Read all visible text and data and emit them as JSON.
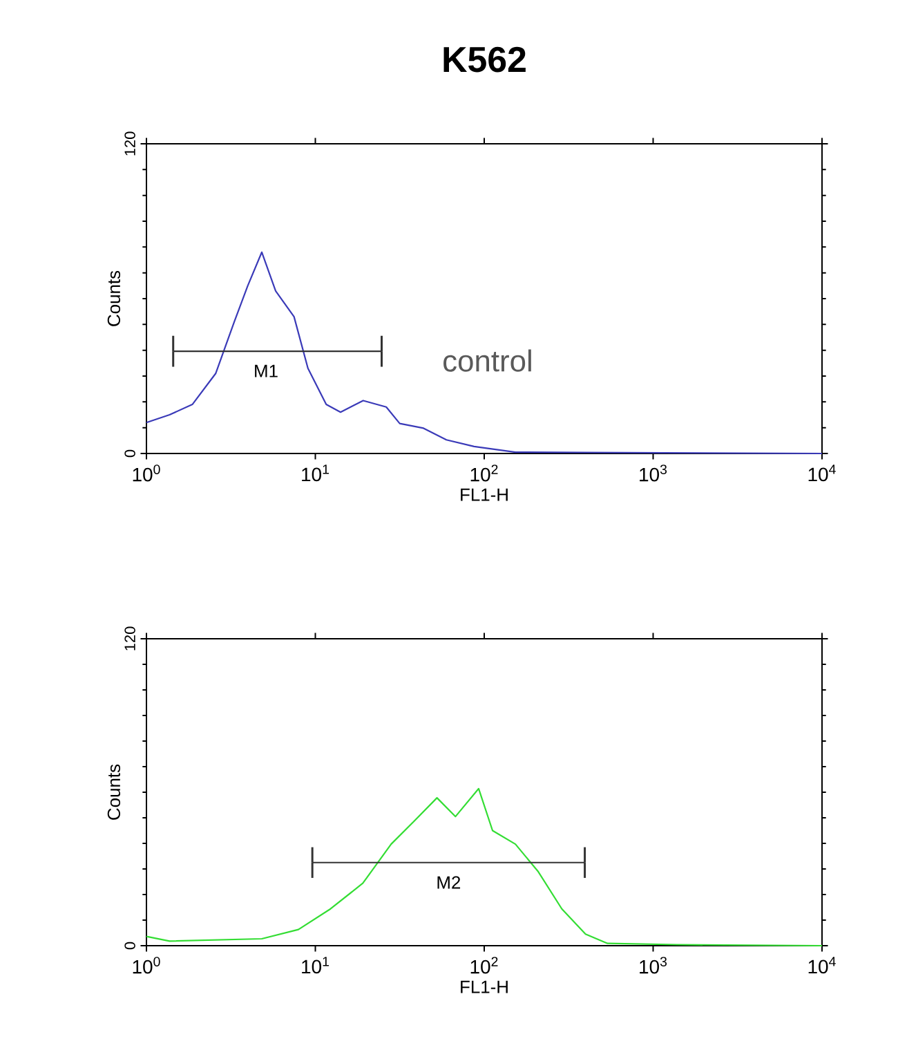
{
  "chart_data": [
    {
      "type": "line",
      "title": "K562",
      "xlabel": "FL1-H",
      "ylabel": "Counts",
      "log": "x",
      "xlim": [
        1,
        10000
      ],
      "ylim": [
        0,
        120
      ],
      "xticks": [
        {
          "value": 1,
          "label": "10$^{0}$"
        },
        {
          "value": 10,
          "label": "10$^{1}$"
        },
        {
          "value": 100,
          "label": "10$^{2}$"
        },
        {
          "value": 1000,
          "label": "10$^{3}$"
        },
        {
          "value": 10000,
          "label": "10$^{4}$"
        }
      ],
      "yticks": [
        0,
        120
      ],
      "series": [
        {
          "color": "#3a3ab8",
          "x": [
            1,
            1.37,
            1.87,
            2.57,
            3.31,
            3.98,
            4.82,
            5.82,
            7.48,
            9.04,
            11.6,
            14.1,
            19.2,
            26.3,
            31.6,
            43.7,
            59.7,
            87.1,
            153,
            398,
            10000
          ],
          "values": [
            12,
            15,
            19,
            31,
            51,
            65,
            78,
            63,
            53,
            33,
            19,
            16,
            20.5,
            18,
            11.6,
            9.8,
            5.3,
            2.7,
            0.5,
            0.4,
            0
          ]
        },
        {
          "type": "line",
          "color": "#333333",
          "x": [
            1.44,
            24.7
          ],
          "values": [
            39.6,
            39.6
          ],
          "errors": [
            6,
            6
          ]
        }
      ],
      "annotations": [
        {
          "text": "M1",
          "x": 5.1,
          "y": 39.6
        },
        "control"
      ]
    },
    {
      "type": "line",
      "xlabel": "FL1-H",
      "ylabel": "Counts",
      "log": "x",
      "xlim": [
        1,
        10000
      ],
      "ylim": [
        0,
        120
      ],
      "xticks": [
        {
          "value": 1,
          "label": "10$^{0}$"
        },
        {
          "value": 10,
          "label": "10$^{1}$"
        },
        {
          "value": 100,
          "label": "10$^{2}$"
        },
        {
          "value": 1000,
          "label": "10$^{3}$"
        },
        {
          "value": 10000,
          "label": "10$^{4}$"
        }
      ],
      "yticks": [
        0,
        120
      ],
      "series": [
        {
          "color": "#33dd33",
          "x": [
            1,
            1.37,
            4.82,
            7.94,
            12.3,
            19.1,
            28.1,
            38.5,
            52.5,
            67.6,
            92.7,
            112,
            153,
            209,
            288,
            398,
            537,
            1380,
            10000
          ],
          "values": [
            3.6,
            1.8,
            2.7,
            6.3,
            14.4,
            24.4,
            39.7,
            48.7,
            57.8,
            50.5,
            61.4,
            45,
            39.7,
            28.9,
            14.4,
            4.5,
            0.9,
            0.4,
            0
          ]
        },
        {
          "type": "line",
          "color": "#333333",
          "x": [
            9.6,
            394
          ],
          "values": [
            32.5,
            32.5
          ],
          "errors": [
            6,
            6
          ]
        }
      ],
      "annotations": [
        {
          "text": "M2",
          "x": 61.5,
          "y": 32.5
        }
      ]
    }
  ]
}
